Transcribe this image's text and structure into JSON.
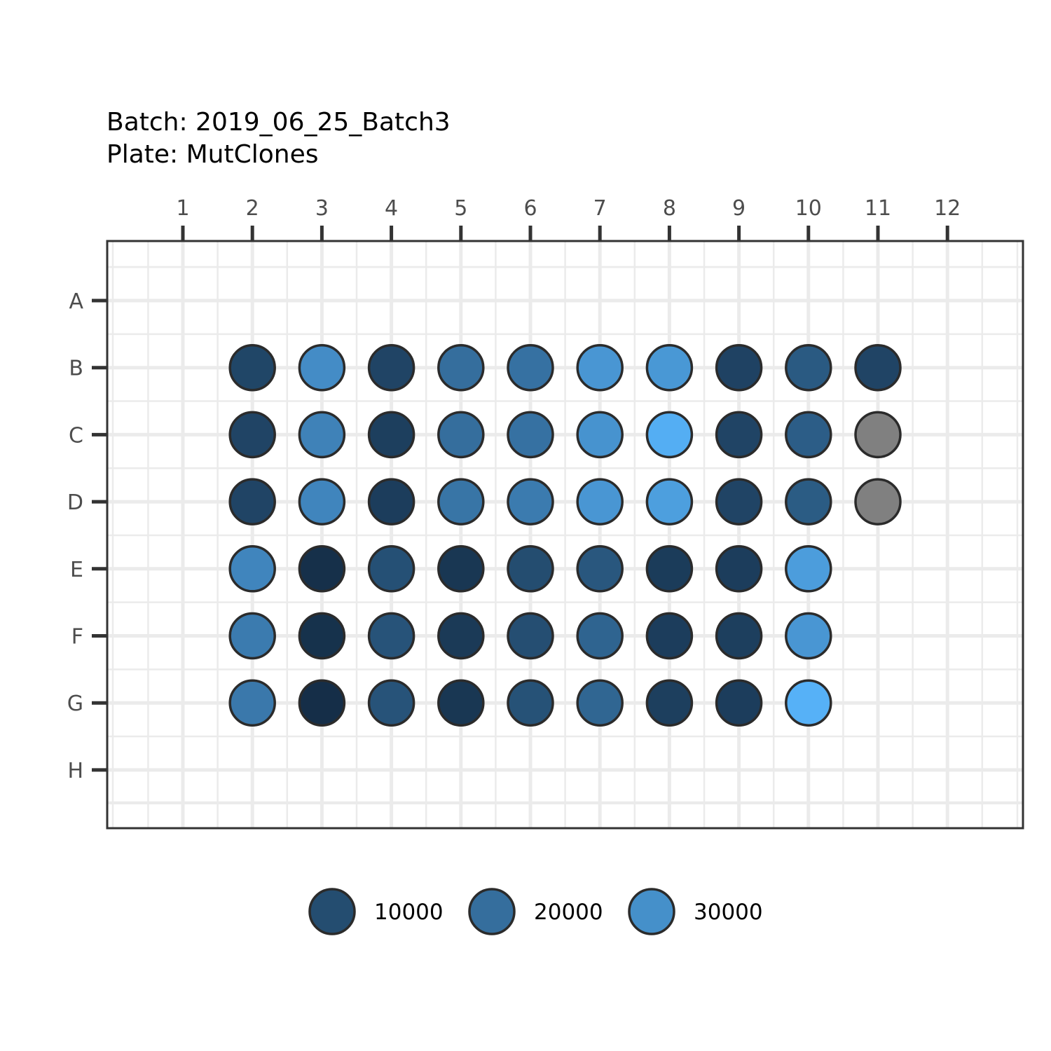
{
  "chart_data": {
    "type": "scatter",
    "title": "Batch: 2019_06_25_Batch3",
    "subtitle": "Plate: MutClones",
    "xlabel": "",
    "ylabel": "",
    "columns": [
      "1",
      "2",
      "3",
      "4",
      "5",
      "6",
      "7",
      "8",
      "9",
      "10",
      "11",
      "12"
    ],
    "rows": [
      "A",
      "B",
      "C",
      "D",
      "E",
      "F",
      "G",
      "H"
    ],
    "color_scale": {
      "low": 0,
      "high": 40000,
      "low_color": "#132B43",
      "high_color": "#56B1F7",
      "na_color": "#808080"
    },
    "legend": {
      "placement": "bottom",
      "entries": [
        {
          "label": "10000",
          "value": 10000
        },
        {
          "label": "20000",
          "value": 20000
        },
        {
          "label": "30000",
          "value": 30000
        }
      ]
    },
    "grid": true,
    "wells": [
      {
        "row": "B",
        "col": 2,
        "value": 8000
      },
      {
        "row": "B",
        "col": 3,
        "value": 29000
      },
      {
        "row": "B",
        "col": 4,
        "value": 7500
      },
      {
        "row": "B",
        "col": 5,
        "value": 20000
      },
      {
        "row": "B",
        "col": 6,
        "value": 21000
      },
      {
        "row": "B",
        "col": 7,
        "value": 32000
      },
      {
        "row": "B",
        "col": 8,
        "value": 32500
      },
      {
        "row": "B",
        "col": 9,
        "value": 7000
      },
      {
        "row": "B",
        "col": 10,
        "value": 14000
      },
      {
        "row": "B",
        "col": 11,
        "value": 7500
      },
      {
        "row": "C",
        "col": 2,
        "value": 7500
      },
      {
        "row": "C",
        "col": 3,
        "value": 26000
      },
      {
        "row": "C",
        "col": 4,
        "value": 6000
      },
      {
        "row": "C",
        "col": 5,
        "value": 20000
      },
      {
        "row": "C",
        "col": 6,
        "value": 21000
      },
      {
        "row": "C",
        "col": 7,
        "value": 31000
      },
      {
        "row": "C",
        "col": 8,
        "value": 39000
      },
      {
        "row": "C",
        "col": 9,
        "value": 7500
      },
      {
        "row": "C",
        "col": 10,
        "value": 15000
      },
      {
        "row": "C",
        "col": 11,
        "value": null
      },
      {
        "row": "D",
        "col": 2,
        "value": 7500
      },
      {
        "row": "D",
        "col": 3,
        "value": 27000
      },
      {
        "row": "D",
        "col": 4,
        "value": 5500
      },
      {
        "row": "D",
        "col": 5,
        "value": 22000
      },
      {
        "row": "D",
        "col": 6,
        "value": 24000
      },
      {
        "row": "D",
        "col": 7,
        "value": 32000
      },
      {
        "row": "D",
        "col": 8,
        "value": 34500
      },
      {
        "row": "D",
        "col": 9,
        "value": 7500
      },
      {
        "row": "D",
        "col": 10,
        "value": 14500
      },
      {
        "row": "D",
        "col": 11,
        "value": null
      },
      {
        "row": "E",
        "col": 2,
        "value": 27000
      },
      {
        "row": "E",
        "col": 3,
        "value": 1500
      },
      {
        "row": "E",
        "col": 4,
        "value": 11000
      },
      {
        "row": "E",
        "col": 5,
        "value": 3500
      },
      {
        "row": "E",
        "col": 6,
        "value": 10000
      },
      {
        "row": "E",
        "col": 7,
        "value": 13000
      },
      {
        "row": "E",
        "col": 8,
        "value": 5000
      },
      {
        "row": "E",
        "col": 9,
        "value": 5500
      },
      {
        "row": "E",
        "col": 10,
        "value": 34000
      },
      {
        "row": "F",
        "col": 2,
        "value": 24000
      },
      {
        "row": "F",
        "col": 3,
        "value": 2000
      },
      {
        "row": "F",
        "col": 4,
        "value": 12000
      },
      {
        "row": "F",
        "col": 5,
        "value": 4500
      },
      {
        "row": "F",
        "col": 6,
        "value": 10500
      },
      {
        "row": "F",
        "col": 7,
        "value": 17000
      },
      {
        "row": "F",
        "col": 8,
        "value": 5500
      },
      {
        "row": "F",
        "col": 9,
        "value": 6000
      },
      {
        "row": "F",
        "col": 10,
        "value": 32000
      },
      {
        "row": "G",
        "col": 2,
        "value": 23000
      },
      {
        "row": "G",
        "col": 3,
        "value": 1000
      },
      {
        "row": "G",
        "col": 4,
        "value": 12000
      },
      {
        "row": "G",
        "col": 5,
        "value": 3500
      },
      {
        "row": "G",
        "col": 6,
        "value": 11500
      },
      {
        "row": "G",
        "col": 7,
        "value": 17500
      },
      {
        "row": "G",
        "col": 8,
        "value": 6000
      },
      {
        "row": "G",
        "col": 9,
        "value": 5500
      },
      {
        "row": "G",
        "col": 10,
        "value": 40000
      }
    ]
  }
}
